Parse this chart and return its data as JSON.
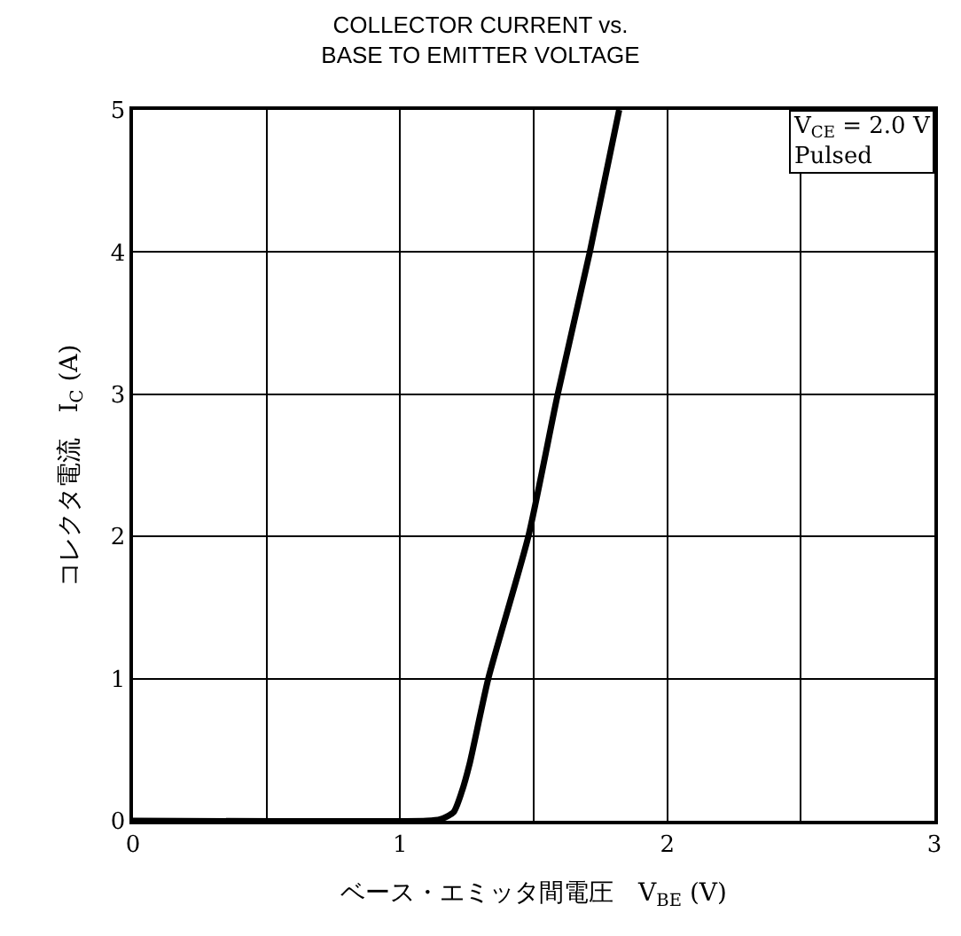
{
  "chart_data": {
    "type": "line",
    "title": "COLLECTOR CURRENT vs.\nBASE TO EMITTER VOLTAGE",
    "xlabel": "ベース・エミッタ間電圧　V$_{BE}$ (V)",
    "ylabel": "コレクタ電流　I$_{C}$ (A)",
    "annotations": [
      "V$_{CE}$ = 2.0 V\nPulsed"
    ],
    "series": [
      {
        "color": "#000000",
        "x": [
          0,
          1.1,
          1.15,
          1.2,
          1.23,
          1.26,
          1.33,
          1.48,
          1.59,
          1.71,
          1.82
        ],
        "values": [
          0,
          0,
          0.01,
          0.06,
          0.2,
          0.4,
          1,
          2,
          3,
          4,
          5
        ]
      }
    ],
    "xlim": [
      0,
      3
    ],
    "ylim": [
      0,
      5
    ],
    "xticks": [
      0,
      {
        "value": 0.5,
        "label": null
      },
      1,
      {
        "value": 1.5,
        "label": null
      },
      2,
      {
        "value": 2.5,
        "label": null
      },
      3
    ],
    "yticks": [
      0,
      1,
      2,
      3,
      4,
      5
    ],
    "grid": true,
    "marker": "none",
    "line_style": "solid"
  }
}
